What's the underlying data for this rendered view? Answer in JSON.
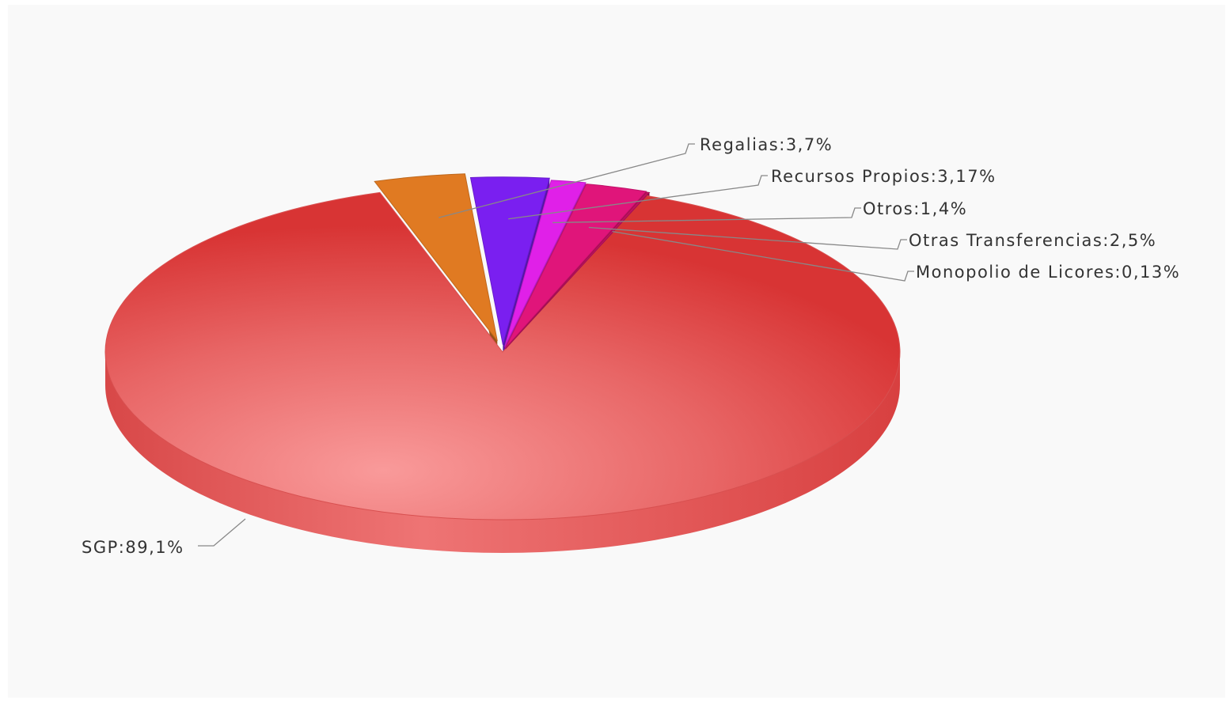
{
  "chart_data": {
    "type": "pie",
    "style": "3d",
    "slices": [
      {
        "name": "SGP",
        "value": 89.1,
        "label": "SGP:89,1%",
        "color": "#e0403f"
      },
      {
        "name": "Regalias",
        "value": 3.7,
        "label": "Regalias:3,7%",
        "color": "#e07a22"
      },
      {
        "name": "Recursos Propios",
        "value": 3.17,
        "label": "Recursos Propios:3,17%",
        "color": "#7a1ff0"
      },
      {
        "name": "Otros",
        "value": 1.4,
        "label": "Otros:1,4%",
        "color": "#e020e8"
      },
      {
        "name": "Otras Transferencias",
        "value": 2.5,
        "label": "Otras Transferencias:2,5%",
        "color": "#e0157a"
      },
      {
        "name": "Monopolio de Licores",
        "value": 0.13,
        "label": "Monopolio de Licores:0,13%",
        "color": "#c01060"
      }
    ]
  }
}
